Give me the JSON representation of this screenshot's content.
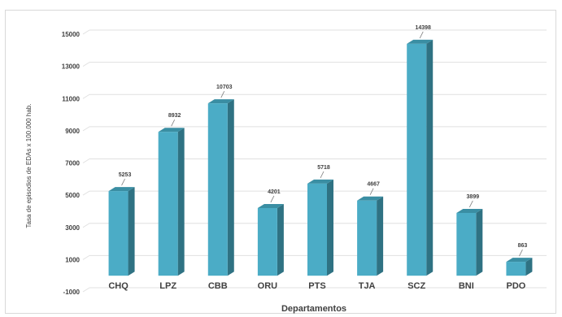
{
  "chart_data": {
    "type": "bar",
    "categories": [
      "CHQ",
      "LPZ",
      "CBB",
      "ORU",
      "PTS",
      "TJA",
      "SCZ",
      "BNI",
      "PDO"
    ],
    "values": [
      5253,
      8932,
      10703,
      4201,
      5718,
      4667,
      14398,
      3899,
      863
    ],
    "data_labels": [
      "5253",
      "8932",
      "10703",
      "4201",
      "5718",
      "4667",
      "14398",
      "3899",
      "863"
    ],
    "title": "",
    "xlabel": "Departamentos",
    "ylabel": "Tasa de episodios de EDAs x 100.000 hab.",
    "ylim": [
      -1000,
      15000
    ],
    "yticks": [
      -1000,
      1000,
      3000,
      5000,
      7000,
      9000,
      11000,
      13000,
      15000
    ],
    "grid": true,
    "legend": "none",
    "bar_color": "#4bacc6",
    "bar_side_color": "#2f7283",
    "bar_top_color": "#3a8ea3"
  }
}
